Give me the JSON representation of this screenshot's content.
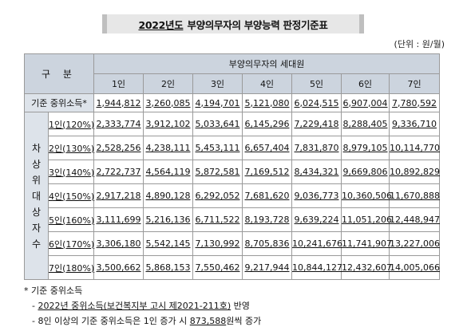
{
  "title": {
    "year": "2022년도",
    "text": "부양의무자의 부양능력 판정기준표"
  },
  "unit": "(단위 : 원/월)",
  "table": {
    "gubun": "구 분",
    "household_header": "부양의무자의 세대원",
    "columns": [
      "1인",
      "2인",
      "3인",
      "4인",
      "5인",
      "6인",
      "7인"
    ],
    "base_label": "기준 중위소득*",
    "base_values": [
      "1,944,812",
      "3,260,085",
      "4,194,701",
      "5,121,080",
      "6,024,515",
      "6,907,004",
      "7,780,592"
    ],
    "side_label": [
      "차",
      "상",
      "위",
      "대",
      "상",
      "자",
      "수"
    ],
    "rows": [
      {
        "label": "1인(120%)",
        "values": [
          "2,333,774",
          "3,912,102",
          "5,033,641",
          "6,145,296",
          "7,229,418",
          "8,288,405",
          "9,336,710"
        ]
      },
      {
        "label": "2인(130%)",
        "values": [
          "2,528,256",
          "4,238,111",
          "5,453,111",
          "6,657,404",
          "7,831,870",
          "8,979,105",
          "10,114,770"
        ]
      },
      {
        "label": "3인(140%)",
        "values": [
          "2,722,737",
          "4,564,119",
          "5,872,581",
          "7,169,512",
          "8,434,321",
          "9,669,806",
          "10,892,829"
        ]
      },
      {
        "label": "4인(150%)",
        "values": [
          "2,917,218",
          "4,890,128",
          "6,292,052",
          "7,681,620",
          "9,036,773",
          "10,360,506",
          "11,670,888"
        ]
      },
      {
        "label": "5인(160%)",
        "values": [
          "3,111,699",
          "5,216,136",
          "6,711,522",
          "8,193,728",
          "9,639,224",
          "11,051,206",
          "12,448,947"
        ]
      },
      {
        "label": "6인(170%)",
        "values": [
          "3,306,180",
          "5,542,145",
          "7,130,992",
          "8,705,836",
          "10,241,676",
          "11,741,907",
          "13,227,006"
        ]
      },
      {
        "label": "7인(180%)",
        "values": [
          "3,500,662",
          "5,868,153",
          "7,550,462",
          "9,217,944",
          "10,844,127",
          "12,432,607",
          "14,005,066"
        ]
      }
    ]
  },
  "notes": {
    "head": "* 기준 중위소득",
    "line1_prefix": "- ",
    "line1_underlined": "2022년 중위소득(보건복지부 고시 제2021-211호)",
    "line1_suffix": " 반영",
    "line2_prefix": "- 8인 이상의 기준 중위소득은 1인 증가 시 ",
    "line2_amount": "873,588",
    "line2_suffix": "원씩 증가"
  }
}
